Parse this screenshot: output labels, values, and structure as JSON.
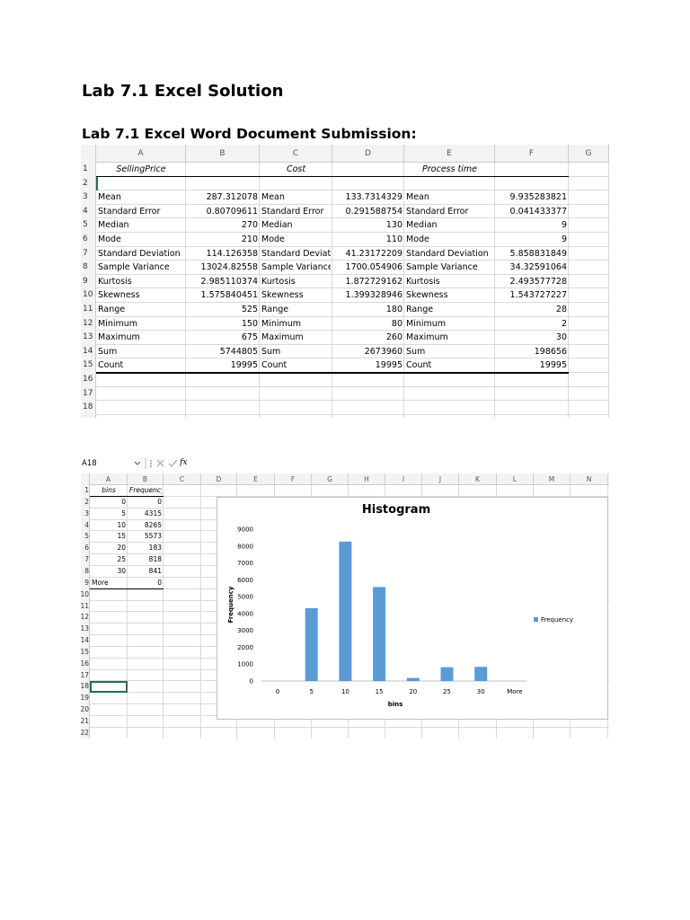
{
  "document": {
    "title": "Lab 7.1 Excel Solution",
    "subtitle": "Lab 7.1 Excel Word Document Submission:"
  },
  "sheet1": {
    "columns": [
      "A",
      "B",
      "C",
      "D",
      "E",
      "F",
      "G"
    ],
    "row_numbers": [
      1,
      2,
      3,
      4,
      5,
      6,
      7,
      8,
      9,
      10,
      11,
      12,
      13,
      14,
      15,
      16,
      17,
      18
    ],
    "header_row": [
      "SellingPrice",
      "Cost",
      "Process time"
    ],
    "rows": [
      [
        "Mean",
        "287.312078",
        "Mean",
        "133.7314329",
        "Mean",
        "9.935283821"
      ],
      [
        "Standard Error",
        "0.80709611",
        "Standard Error",
        "0.291588754",
        "Standard Error",
        "0.041433377"
      ],
      [
        "Median",
        "270",
        "Median",
        "130",
        "Median",
        "9"
      ],
      [
        "Mode",
        "210",
        "Mode",
        "110",
        "Mode",
        "9"
      ],
      [
        "Standard Deviation",
        "114.126358",
        "Standard Deviatic",
        "41.23172209",
        "Standard Deviation",
        "5.858831849"
      ],
      [
        "Sample Variance",
        "13024.82558",
        "Sample Variance",
        "1700.054906",
        "Sample Variance",
        "34.32591064"
      ],
      [
        "Kurtosis",
        "2.985110374",
        "Kurtosis",
        "1.872729162",
        "Kurtosis",
        "2.493577728"
      ],
      [
        "Skewness",
        "1.575840451",
        "Skewness",
        "1.399328946",
        "Skewness",
        "1.543727227"
      ],
      [
        "Range",
        "525",
        "Range",
        "180",
        "Range",
        "28"
      ],
      [
        "Minimum",
        "150",
        "Minimum",
        "80",
        "Minimum",
        "2"
      ],
      [
        "Maximum",
        "675",
        "Maximum",
        "260",
        "Maximum",
        "30"
      ],
      [
        "Sum",
        "5744805",
        "Sum",
        "2673960",
        "Sum",
        "198656"
      ],
      [
        "Count",
        "19995",
        "Count",
        "19995",
        "Count",
        "19995"
      ]
    ]
  },
  "sheet2": {
    "name_box": "A18",
    "formula_label": "fx",
    "columns": [
      "A",
      "B",
      "C",
      "D",
      "E",
      "F",
      "G",
      "H",
      "I",
      "J",
      "K",
      "L",
      "M",
      "N"
    ],
    "row_numbers": [
      1,
      2,
      3,
      4,
      5,
      6,
      7,
      8,
      9,
      10,
      11,
      12,
      13,
      14,
      15,
      16,
      17,
      18,
      19,
      20,
      21,
      22
    ],
    "header_row": [
      "bins",
      "Frequency"
    ],
    "rows": [
      [
        "0",
        "0"
      ],
      [
        "5",
        "4315"
      ],
      [
        "10",
        "8265"
      ],
      [
        "15",
        "5573"
      ],
      [
        "20",
        "183"
      ],
      [
        "25",
        "818"
      ],
      [
        "30",
        "841"
      ],
      [
        "More",
        "0"
      ]
    ]
  },
  "chart_data": {
    "type": "bar",
    "title": "Histogram",
    "x_label": "bins",
    "y_label": "Frequency",
    "categories": [
      "0",
      "5",
      "10",
      "15",
      "20",
      "25",
      "30",
      "More"
    ],
    "series": [
      {
        "name": "Frequency",
        "color": "#5b9bd5",
        "values": [
          0,
          4315,
          8265,
          5573,
          183,
          818,
          841,
          0
        ]
      }
    ],
    "ylim": [
      0,
      9000
    ],
    "yticks": [
      0,
      1000,
      2000,
      3000,
      4000,
      5000,
      6000,
      7000,
      8000,
      9000
    ],
    "grid": false,
    "legend": "right"
  }
}
